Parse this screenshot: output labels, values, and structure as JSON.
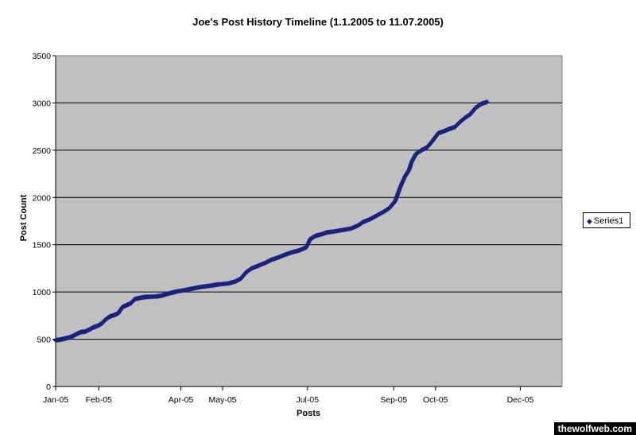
{
  "chart_data": {
    "type": "scatter",
    "title": "Joe's Post History Timeline (1.1.2005 to 11.07.2005)",
    "xlabel": "Posts",
    "ylabel": "Post Count",
    "ylim": [
      0,
      3500
    ],
    "yticks": [
      0,
      500,
      1000,
      1500,
      2000,
      2500,
      3000,
      3500
    ],
    "xlim": [
      "2005-01-01",
      "2005-12-31"
    ],
    "xtick_labels": [
      "Jan-05",
      "Feb-05",
      "Apr-05",
      "May-05",
      "Jul-05",
      "Sep-05",
      "Oct-05",
      "Dec-05"
    ],
    "xtick_dates": [
      "2005-01-01",
      "2005-02-01",
      "2005-04-01",
      "2005-05-01",
      "2005-07-01",
      "2005-09-01",
      "2005-10-01",
      "2005-12-01"
    ],
    "grid": "horizontal",
    "background_color": "#c0c0c0",
    "marker_color": "#1a237e",
    "marker": "diamond",
    "legend_position": "right",
    "series": [
      {
        "name": "Series1",
        "points": [
          [
            "2005-01-01",
            490
          ],
          [
            "2005-01-04",
            495
          ],
          [
            "2005-01-07",
            505
          ],
          [
            "2005-01-10",
            515
          ],
          [
            "2005-01-13",
            530
          ],
          [
            "2005-01-16",
            555
          ],
          [
            "2005-01-19",
            575
          ],
          [
            "2005-01-22",
            580
          ],
          [
            "2005-01-25",
            600
          ],
          [
            "2005-01-28",
            625
          ],
          [
            "2005-01-31",
            640
          ],
          [
            "2005-02-03",
            665
          ],
          [
            "2005-02-06",
            710
          ],
          [
            "2005-02-09",
            740
          ],
          [
            "2005-02-12",
            755
          ],
          [
            "2005-02-15",
            775
          ],
          [
            "2005-02-18",
            840
          ],
          [
            "2005-02-21",
            860
          ],
          [
            "2005-02-24",
            880
          ],
          [
            "2005-02-27",
            925
          ],
          [
            "2005-03-02",
            935
          ],
          [
            "2005-03-05",
            945
          ],
          [
            "2005-03-08",
            948
          ],
          [
            "2005-03-14",
            952
          ],
          [
            "2005-03-18",
            960
          ],
          [
            "2005-03-21",
            975
          ],
          [
            "2005-03-25",
            990
          ],
          [
            "2005-03-29",
            1005
          ],
          [
            "2005-04-04",
            1020
          ],
          [
            "2005-04-09",
            1035
          ],
          [
            "2005-04-14",
            1050
          ],
          [
            "2005-04-19",
            1060
          ],
          [
            "2005-04-24",
            1070
          ],
          [
            "2005-04-28",
            1080
          ],
          [
            "2005-05-05",
            1090
          ],
          [
            "2005-05-10",
            1110
          ],
          [
            "2005-05-14",
            1140
          ],
          [
            "2005-05-18",
            1210
          ],
          [
            "2005-05-22",
            1250
          ],
          [
            "2005-05-27",
            1280
          ],
          [
            "2005-06-01",
            1310
          ],
          [
            "2005-06-05",
            1340
          ],
          [
            "2005-06-10",
            1365
          ],
          [
            "2005-06-15",
            1395
          ],
          [
            "2005-06-20",
            1420
          ],
          [
            "2005-06-25",
            1440
          ],
          [
            "2005-06-30",
            1470
          ],
          [
            "2005-07-03",
            1560
          ],
          [
            "2005-07-07",
            1595
          ],
          [
            "2005-07-11",
            1610
          ],
          [
            "2005-07-15",
            1630
          ],
          [
            "2005-07-20",
            1640
          ],
          [
            "2005-07-26",
            1655
          ],
          [
            "2005-08-01",
            1670
          ],
          [
            "2005-08-06",
            1700
          ],
          [
            "2005-08-10",
            1740
          ],
          [
            "2005-08-15",
            1770
          ],
          [
            "2005-08-20",
            1810
          ],
          [
            "2005-08-25",
            1850
          ],
          [
            "2005-08-29",
            1890
          ],
          [
            "2005-09-02",
            1960
          ],
          [
            "2005-09-04",
            2040
          ],
          [
            "2005-09-06",
            2120
          ],
          [
            "2005-09-09",
            2220
          ],
          [
            "2005-09-12",
            2290
          ],
          [
            "2005-09-14",
            2380
          ],
          [
            "2005-09-17",
            2460
          ],
          [
            "2005-09-21",
            2500
          ],
          [
            "2005-09-25",
            2530
          ],
          [
            "2005-09-29",
            2600
          ],
          [
            "2005-10-03",
            2680
          ],
          [
            "2005-10-07",
            2700
          ],
          [
            "2005-10-11",
            2725
          ],
          [
            "2005-10-15",
            2745
          ],
          [
            "2005-10-18",
            2790
          ],
          [
            "2005-10-22",
            2840
          ],
          [
            "2005-10-26",
            2880
          ],
          [
            "2005-10-30",
            2950
          ],
          [
            "2005-11-03",
            2990
          ],
          [
            "2005-11-07",
            3010
          ]
        ]
      }
    ]
  },
  "watermark": "thewolfweb.com"
}
